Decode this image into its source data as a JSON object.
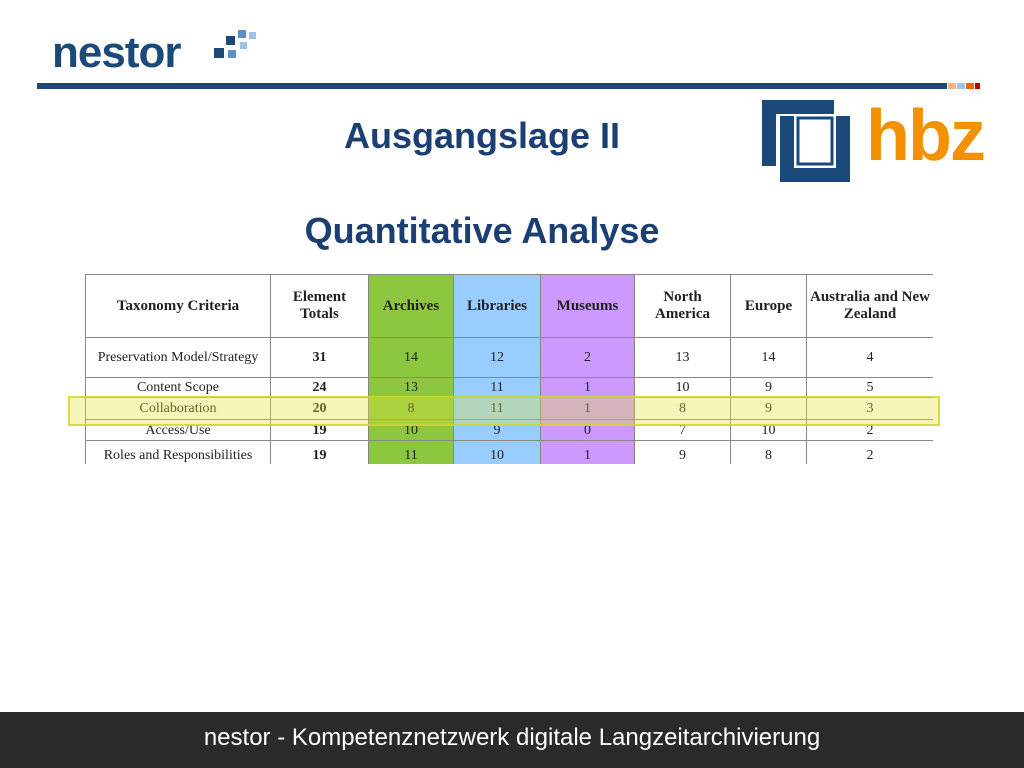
{
  "header": {
    "logo": "nestor",
    "partner_logo": "hbz"
  },
  "slide": {
    "title": "Ausgangslage II",
    "subtitle": "Quantitative Analyse"
  },
  "table": {
    "columns": [
      "Taxonomy Criteria",
      "Element Totals",
      "Archives",
      "Libraries",
      "Museums",
      "North America",
      "Europe",
      "Australia and New Zealand"
    ],
    "rows": [
      [
        "Preservation Model/Strategy",
        31,
        14,
        12,
        2,
        13,
        14,
        4
      ],
      [
        "Content Scope",
        24,
        13,
        11,
        1,
        10,
        9,
        5
      ],
      [
        "Collaboration",
        20,
        8,
        11,
        1,
        8,
        9,
        3
      ],
      [
        "Access/Use",
        19,
        10,
        9,
        0,
        7,
        10,
        2
      ],
      [
        "Roles and Responsibilities",
        19,
        11,
        10,
        1,
        9,
        8,
        2
      ]
    ]
  },
  "footer": {
    "text": "nestor - Kompetenznetzwerk digitale Langzeitarchivierung"
  }
}
